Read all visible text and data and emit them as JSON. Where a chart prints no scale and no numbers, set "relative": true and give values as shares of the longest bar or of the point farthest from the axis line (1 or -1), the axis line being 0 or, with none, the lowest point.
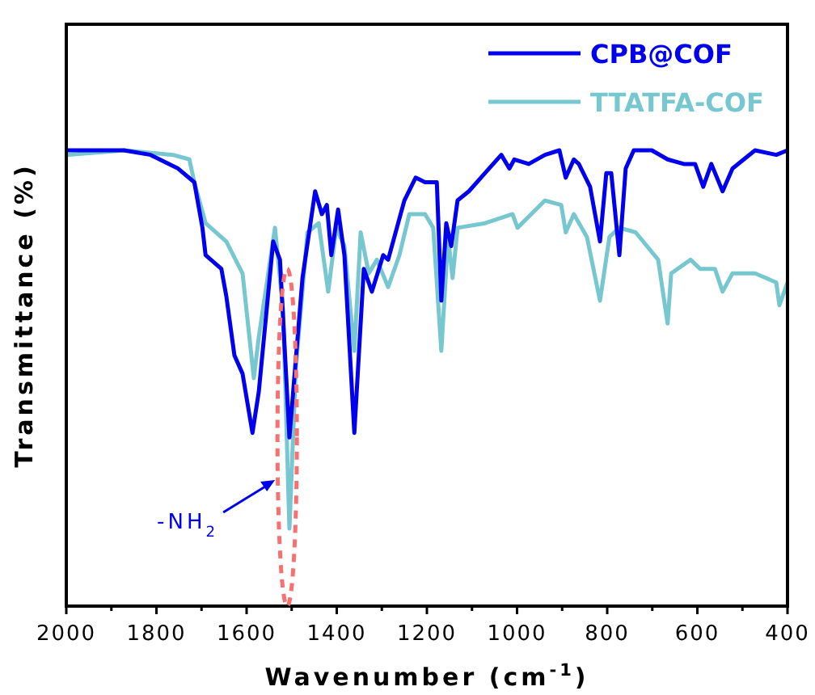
{
  "chart_data": {
    "type": "line",
    "relative": true,
    "xlabel": "Wavenumber (cm$^{-1}$)",
    "ylabel": "Transmittance (%)",
    "xlim": [
      2000,
      400
    ],
    "xticks": [
      2000,
      {
        "value": 1900,
        "label": null
      },
      1800,
      {
        "value": 1700,
        "label": null
      },
      1600,
      {
        "value": 1500,
        "label": null
      },
      1400,
      {
        "value": 1300,
        "label": null
      },
      1200,
      {
        "value": 1100,
        "label": null
      },
      1000,
      {
        "value": 900,
        "label": null
      },
      800,
      {
        "value": 700,
        "label": null
      },
      600,
      {
        "value": 500,
        "label": null
      },
      400
    ],
    "tick_labels": "x",
    "legend": "top right",
    "grid": false,
    "line_style": "solid",
    "marker": "none",
    "annotations": [
      "-NH$_{2}$"
    ],
    "series": [
      {
        "name": "CPB@COF",
        "color": "#0000ee",
        "x": [
          2000,
          1872,
          1813,
          1752,
          1716,
          1698,
          1691,
          1656,
          1645,
          1627,
          1609,
          1587,
          1573,
          1541,
          1526,
          1505,
          1476,
          1448,
          1433,
          1422,
          1412,
          1397,
          1383,
          1361,
          1340,
          1322,
          1297,
          1286,
          1250,
          1225,
          1204,
          1178,
          1168,
          1157,
          1146,
          1132,
          1107,
          1071,
          1035,
          1017,
          1006,
          974,
          938,
          906,
          892,
          874,
          863,
          838,
          816,
          802,
          791,
          773,
          759,
          741,
          701,
          666,
          630,
          605,
          587,
          569,
          544,
          522,
          472,
          425,
          400
        ],
        "values": [
          1.0,
          1.0,
          0.99,
          0.96,
          0.93,
          0.83,
          0.77,
          0.74,
          0.68,
          0.55,
          0.51,
          0.38,
          0.47,
          0.8,
          0.76,
          0.37,
          0.72,
          0.91,
          0.86,
          0.88,
          0.77,
          0.87,
          0.77,
          0.38,
          0.74,
          0.69,
          0.77,
          0.76,
          0.89,
          0.94,
          0.93,
          0.93,
          0.67,
          0.84,
          0.79,
          0.89,
          0.91,
          0.95,
          0.99,
          0.96,
          0.98,
          0.97,
          0.99,
          1.0,
          0.94,
          0.98,
          0.97,
          0.92,
          0.8,
          0.95,
          0.95,
          0.77,
          0.96,
          1.0,
          1.0,
          0.98,
          0.97,
          0.97,
          0.92,
          0.97,
          0.91,
          0.96,
          1.0,
          0.99,
          1.0
        ]
      },
      {
        "name": "TTATFA-COF",
        "color": "#76c7cf",
        "x": [
          2000,
          1871,
          1763,
          1727,
          1716,
          1691,
          1645,
          1609,
          1584,
          1573,
          1537,
          1519,
          1505,
          1491,
          1465,
          1440,
          1419,
          1401,
          1383,
          1361,
          1347,
          1329,
          1311,
          1286,
          1261,
          1239,
          1204,
          1186,
          1168,
          1153,
          1143,
          1132,
          1071,
          1010,
          999,
          938,
          902,
          892,
          874,
          845,
          816,
          795,
          773,
          737,
          687,
          666,
          658,
          615,
          594,
          561,
          544,
          522,
          472,
          425,
          418,
          400
        ],
        "values": [
          0.99,
          1.0,
          0.99,
          0.98,
          0.93,
          0.84,
          0.8,
          0.73,
          0.5,
          0.59,
          0.83,
          0.65,
          0.17,
          0.52,
          0.82,
          0.84,
          0.69,
          0.83,
          0.79,
          0.56,
          0.82,
          0.73,
          0.76,
          0.7,
          0.77,
          0.86,
          0.86,
          0.83,
          0.56,
          0.81,
          0.72,
          0.83,
          0.84,
          0.86,
          0.83,
          0.89,
          0.88,
          0.82,
          0.86,
          0.81,
          0.67,
          0.81,
          0.83,
          0.82,
          0.76,
          0.62,
          0.73,
          0.76,
          0.74,
          0.74,
          0.69,
          0.73,
          0.73,
          0.71,
          0.66,
          0.71
        ]
      }
    ]
  }
}
